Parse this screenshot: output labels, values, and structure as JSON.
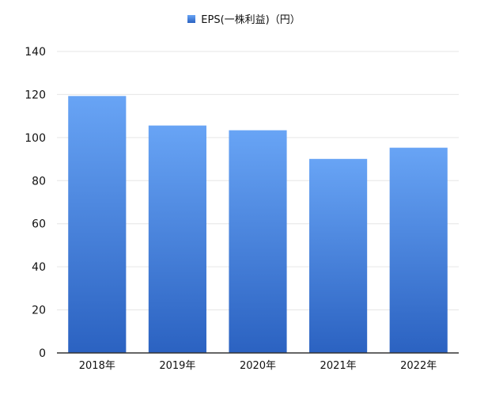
{
  "chart_data": {
    "type": "bar",
    "categories": [
      "2018年",
      "2019年",
      "2020年",
      "2021年",
      "2022年"
    ],
    "series": [
      {
        "name": "EPS(一株利益)（円）",
        "values": [
          119.3,
          105.6,
          103.4,
          90.1,
          95.3
        ]
      }
    ],
    "ylim": [
      0,
      140
    ],
    "yticks": [
      0,
      20,
      40,
      60,
      80,
      100,
      120,
      140
    ],
    "grid": true,
    "legend": "top-center",
    "colors": {
      "bar_top": "#68a4f5",
      "bar_bottom": "#2b62c1",
      "grid": "#e6e6e6",
      "axis": "#333333"
    }
  }
}
